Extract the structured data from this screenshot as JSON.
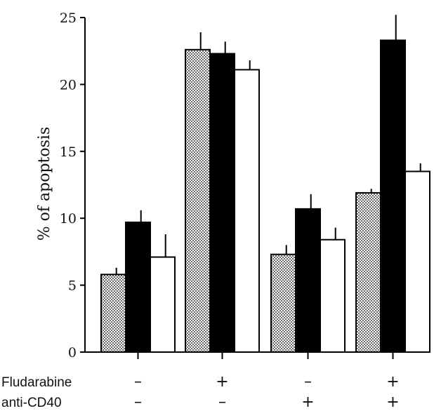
{
  "chart_data": {
    "type": "bar",
    "title": "",
    "xlabel": "",
    "ylabel": "% of apoptosis",
    "ylim": [
      0,
      25
    ],
    "yticks": [
      0,
      5,
      10,
      15,
      20,
      25
    ],
    "grid": false,
    "categories": [
      "group-1",
      "group-2",
      "group-3",
      "group-4"
    ],
    "series": [
      {
        "pattern": "dotted",
        "values": [
          5.8,
          22.6,
          7.3,
          11.9
        ],
        "errors": [
          0.5,
          1.3,
          0.7,
          0.3
        ]
      },
      {
        "pattern": "solid",
        "values": [
          9.7,
          22.3,
          10.7,
          23.3
        ],
        "errors": [
          0.9,
          0.9,
          1.1,
          1.9
        ]
      },
      {
        "pattern": "open",
        "values": [
          7.1,
          21.1,
          8.4,
          13.5
        ],
        "errors": [
          1.7,
          0.7,
          0.9,
          0.6
        ]
      }
    ],
    "conditions": [
      {
        "label": "Fludarabine",
        "signs": [
          "–",
          "+",
          "–",
          "+"
        ]
      },
      {
        "label": "anti-CD40",
        "signs": [
          "–",
          "–",
          "+",
          "+"
        ]
      }
    ],
    "colors": {
      "fill_solid": "#000000",
      "fill_open": "#ffffff",
      "dot": "#000000",
      "stroke": "#000000"
    }
  }
}
